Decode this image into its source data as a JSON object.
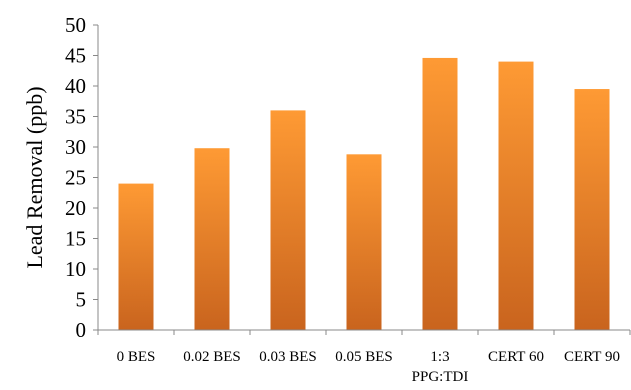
{
  "chart_data": {
    "type": "bar",
    "categories": [
      "0 BES",
      "0.02 BES",
      "0.03 BES",
      "0.05 BES",
      "1:3 PPG:TDI",
      "CERT 60",
      "CERT 90"
    ],
    "category_lines": [
      [
        "0 BES"
      ],
      [
        "0.02 BES"
      ],
      [
        "0.03 BES"
      ],
      [
        "0.05 BES"
      ],
      [
        "1:3",
        "PPG:TDI"
      ],
      [
        "CERT 60"
      ],
      [
        "CERT 90"
      ]
    ],
    "values": [
      24,
      29.8,
      36,
      28.8,
      44.6,
      44,
      39.5
    ],
    "title": "",
    "xlabel": "",
    "ylabel": "Lead Removal (ppb)",
    "ylim": [
      0,
      50
    ],
    "yticks": [
      0,
      5,
      10,
      15,
      20,
      25,
      30,
      35,
      40,
      45,
      50
    ],
    "grid": false,
    "legend": "none",
    "colors": {
      "bar_top": "#fe9a34",
      "bar_bottom": "#c9641e",
      "axis": "#888888"
    }
  }
}
